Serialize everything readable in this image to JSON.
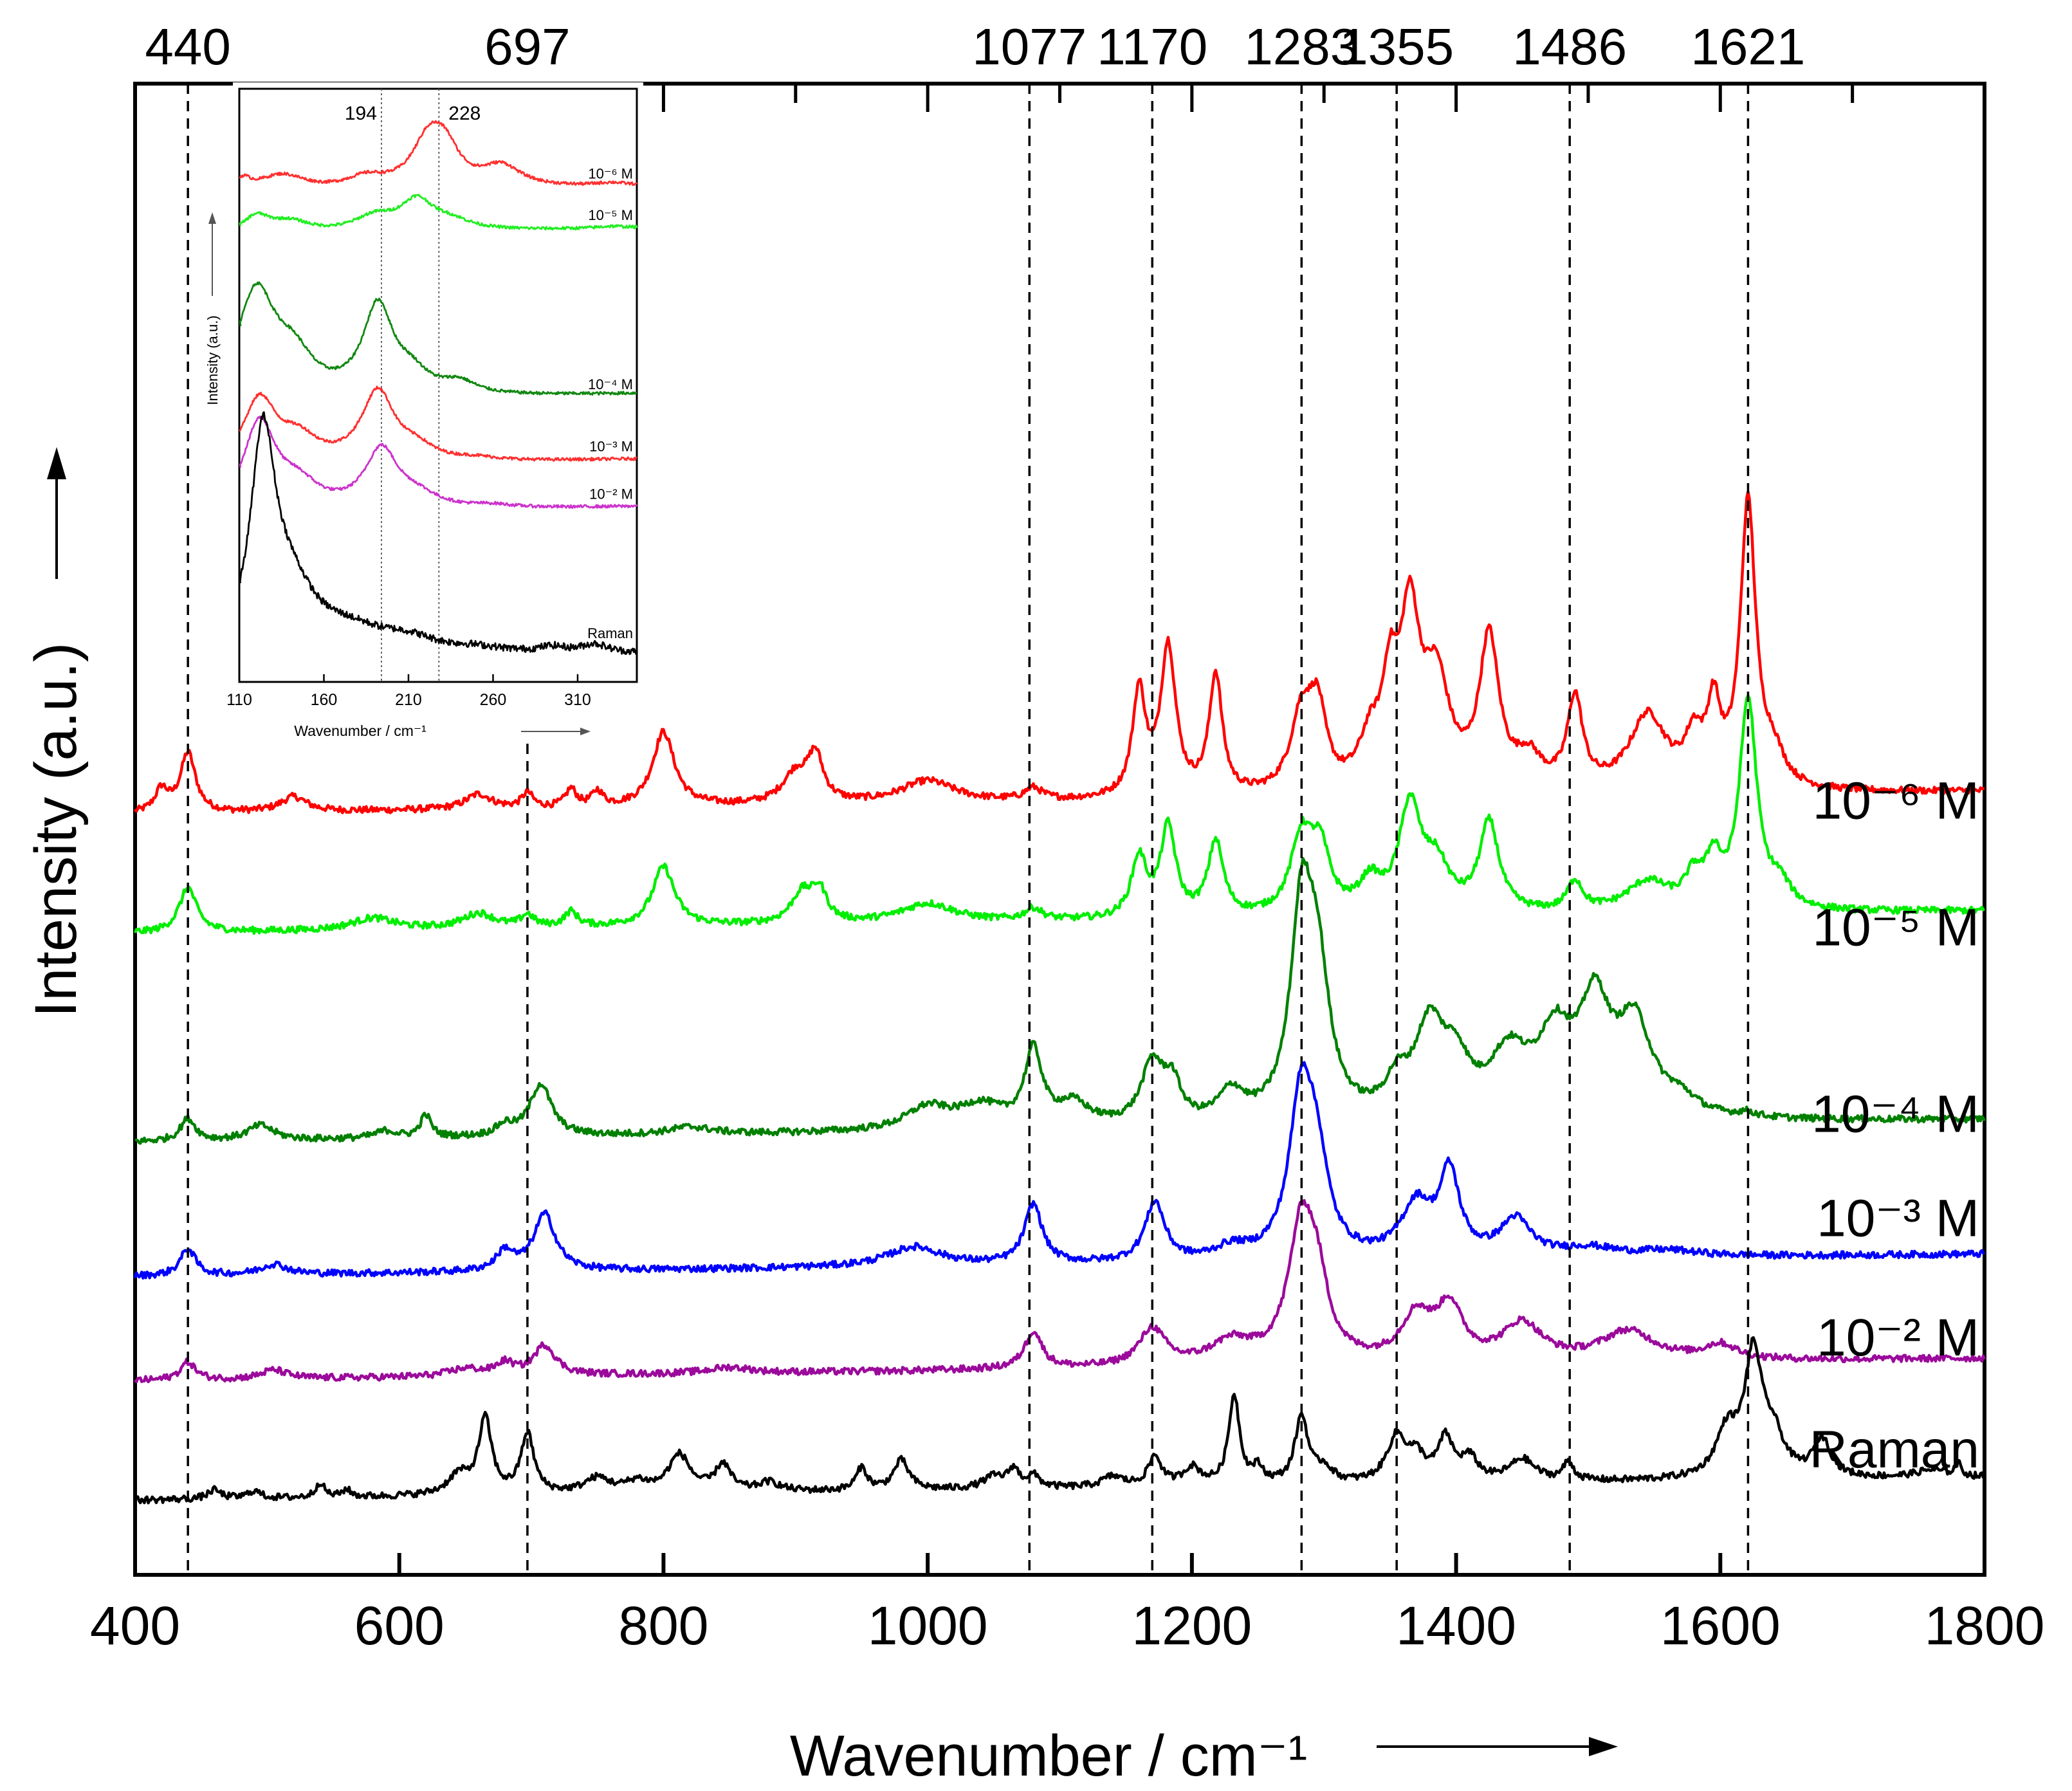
{
  "chart_data": [
    {
      "type": "line",
      "title": "",
      "xlabel": "Wavenumber / cm⁻¹",
      "ylabel": "Intensity (a.u.)",
      "xlim": [
        400,
        1800
      ],
      "ylim": [
        0,
        100
      ],
      "x_ticks": [
        "400",
        "600",
        "800",
        "1000",
        "1200",
        "1400",
        "1600",
        "1800"
      ],
      "x_tick_values": [
        400,
        600,
        800,
        1000,
        1200,
        1400,
        1600,
        1800
      ],
      "top_ticks": [
        400,
        500,
        600,
        700,
        800,
        900,
        1000,
        1100,
        1200,
        1300,
        1400,
        1500,
        1600,
        1700,
        1800
      ],
      "annotations": [
        {
          "position": 440,
          "label": "440"
        },
        {
          "position": 697,
          "label": "697"
        },
        {
          "position": 1077,
          "label": "1077"
        },
        {
          "position": 1170,
          "label": "1170"
        },
        {
          "position": 1283,
          "label": "1283"
        },
        {
          "position": 1355,
          "label": "1355"
        },
        {
          "position": 1486,
          "label": "1486"
        },
        {
          "position": 1621,
          "label": "1621"
        }
      ],
      "series": [
        {
          "name": "10⁻⁶ M",
          "color": "#ff0000",
          "baseline": 51,
          "ypos": 52,
          "peaks": [
            [
              420,
              1.5,
              6
            ],
            [
              440,
              4,
              7
            ],
            [
              520,
              1,
              12
            ],
            [
              660,
              1,
              12
            ],
            [
              697,
              1,
              5
            ],
            [
              730,
              1.2,
              5
            ],
            [
              750,
              1,
              5
            ],
            [
              800,
              5,
              10
            ],
            [
              900,
              2,
              12
            ],
            [
              915,
              3,
              7
            ],
            [
              1000,
              1.5,
              25
            ],
            [
              1080,
              0.8,
              8
            ],
            [
              1160,
              7,
              6
            ],
            [
              1182,
              10,
              7
            ],
            [
              1218,
              8,
              6
            ],
            [
              1283,
              5,
              10
            ],
            [
              1295,
              5,
              8
            ],
            [
              1335,
              3,
              10
            ],
            [
              1350,
              6,
              7
            ],
            [
              1365,
              11,
              9
            ],
            [
              1385,
              7,
              12
            ],
            [
              1425,
              10,
              9
            ],
            [
              1455,
              2,
              12
            ],
            [
              1490,
              6,
              7
            ],
            [
              1545,
              5,
              17
            ],
            [
              1580,
              3,
              8
            ],
            [
              1595,
              5,
              6
            ],
            [
              1621,
              19,
              7
            ],
            [
              1640,
              2,
              10
            ]
          ]
        },
        {
          "name": "10⁻⁵ M",
          "color": "#00ee00",
          "baseline": 43,
          "ypos": 43.5,
          "peaks": [
            [
              440,
              3,
              8
            ],
            [
              580,
              0.8,
              20
            ],
            [
              660,
              1,
              15
            ],
            [
              697,
              0.8,
              6
            ],
            [
              730,
              1,
              6
            ],
            [
              800,
              4,
              10
            ],
            [
              905,
              2,
              10
            ],
            [
              918,
              2,
              7
            ],
            [
              1000,
              1.3,
              25
            ],
            [
              1080,
              0.8,
              8
            ],
            [
              1160,
              4,
              7
            ],
            [
              1182,
              6,
              7
            ],
            [
              1218,
              5,
              7
            ],
            [
              1283,
              5,
              10
            ],
            [
              1297,
              4,
              9
            ],
            [
              1335,
              2,
              10
            ],
            [
              1365,
              7,
              10
            ],
            [
              1385,
              3,
              12
            ],
            [
              1425,
              6,
              9
            ],
            [
              1490,
              2,
              7
            ],
            [
              1545,
              2,
              20
            ],
            [
              1580,
              2,
              8
            ],
            [
              1595,
              3,
              7
            ],
            [
              1621,
              14,
              8
            ],
            [
              1645,
              1.5,
              10
            ]
          ]
        },
        {
          "name": "10⁻⁴ M",
          "color": "#008000",
          "baseline": 29,
          "ypos": 31,
          "peaks": [
            [
              440,
              1.5,
              7
            ],
            [
              495,
              1,
              12
            ],
            [
              590,
              0.5,
              10
            ],
            [
              620,
              1.5,
              5
            ],
            [
              680,
              0.7,
              8
            ],
            [
              707,
              3.5,
              10
            ],
            [
              820,
              0.5,
              20
            ],
            [
              1000,
              1.5,
              20
            ],
            [
              1040,
              1.5,
              20
            ],
            [
              1080,
              5,
              8
            ],
            [
              1110,
              1.5,
              15
            ],
            [
              1170,
              4,
              10
            ],
            [
              1185,
              2.5,
              8
            ],
            [
              1230,
              2,
              12
            ],
            [
              1283,
              13,
              10
            ],
            [
              1295,
              9,
              11
            ],
            [
              1355,
              2,
              10
            ],
            [
              1380,
              6,
              14
            ],
            [
              1400,
              3,
              12
            ],
            [
              1440,
              4,
              18
            ],
            [
              1475,
              5,
              16
            ],
            [
              1505,
              7,
              14
            ],
            [
              1535,
              6,
              16
            ],
            [
              1570,
              1,
              15
            ],
            [
              1620,
              0.3,
              8
            ]
          ]
        },
        {
          "name": "10⁻³ M",
          "color": "#0000ff",
          "baseline": 20,
          "ypos": 24,
          "peaks": [
            [
              440,
              1.8,
              7
            ],
            [
              505,
              0.7,
              12
            ],
            [
              680,
              1.3,
              8
            ],
            [
              710,
              3.8,
              10
            ],
            [
              990,
              1.3,
              25
            ],
            [
              1080,
              4,
              8
            ],
            [
              1172,
              4,
              9
            ],
            [
              1230,
              0.8,
              15
            ],
            [
              1283,
              11,
              11
            ],
            [
              1295,
              5,
              10
            ],
            [
              1370,
              3.5,
              14
            ],
            [
              1395,
              5.5,
              9
            ],
            [
              1445,
              2.5,
              14
            ],
            [
              1500,
              0.6,
              25
            ],
            [
              1560,
              0.4,
              30
            ]
          ]
        },
        {
          "name": "10⁻² M",
          "color": "#9b0a9b",
          "baseline": 13,
          "ypos": 16,
          "peaks": [
            [
              440,
              1.2,
              7
            ],
            [
              505,
              0.6,
              12
            ],
            [
              650,
              0.5,
              15
            ],
            [
              680,
              0.8,
              8
            ],
            [
              710,
              2,
              10
            ],
            [
              850,
              0.4,
              20
            ],
            [
              1080,
              2.5,
              8
            ],
            [
              1170,
              2.5,
              12
            ],
            [
              1230,
              1.5,
              20
            ],
            [
              1283,
              9,
              12
            ],
            [
              1295,
              4,
              10
            ],
            [
              1370,
              3,
              14
            ],
            [
              1395,
              3.5,
              12
            ],
            [
              1450,
              2.5,
              18
            ],
            [
              1530,
              2,
              25
            ],
            [
              1600,
              1,
              15
            ]
          ]
        },
        {
          "name": "Raman",
          "color": "#000000",
          "baseline": 5,
          "ypos": 8.5,
          "peaks": [
            [
              460,
              0.6,
              6
            ],
            [
              490,
              0.5,
              6
            ],
            [
              540,
              1,
              4
            ],
            [
              560,
              0.5,
              4
            ],
            [
              645,
              1.3,
              10
            ],
            [
              665,
              5,
              6
            ],
            [
              697,
              4,
              6
            ],
            [
              750,
              1,
              12
            ],
            [
              780,
              0.7,
              10
            ],
            [
              812,
              2.5,
              10
            ],
            [
              845,
              1.8,
              7
            ],
            [
              880,
              0.6,
              10
            ],
            [
              950,
              1.5,
              5
            ],
            [
              980,
              2,
              7
            ],
            [
              1050,
              0.8,
              10
            ],
            [
              1065,
              1.2,
              5
            ],
            [
              1080,
              0.8,
              6
            ],
            [
              1140,
              0.7,
              10
            ],
            [
              1172,
              2,
              6
            ],
            [
              1200,
              1.2,
              8
            ],
            [
              1232,
              6,
              5
            ],
            [
              1250,
              1,
              5
            ],
            [
              1283,
              4.5,
              6
            ],
            [
              1300,
              1,
              8
            ],
            [
              1355,
              3,
              9
            ],
            [
              1370,
              1.5,
              8
            ],
            [
              1392,
              2.8,
              7
            ],
            [
              1410,
              1.5,
              8
            ],
            [
              1450,
              1.5,
              12
            ],
            [
              1485,
              1.2,
              5
            ],
            [
              1605,
              3,
              10
            ],
            [
              1625,
              8,
              8
            ],
            [
              1640,
              2.5,
              10
            ],
            [
              1677,
              2.5,
              8
            ],
            [
              1760,
              0.5,
              15
            ],
            [
              1780,
              0.8,
              3
            ]
          ]
        }
      ]
    },
    {
      "type": "line",
      "title": "",
      "xlabel": "Wavenumber / cm⁻¹",
      "ylabel": "Intensity (a.u.)",
      "xlim": [
        110,
        345
      ],
      "ylim": [
        0,
        100
      ],
      "x_ticks": [
        "110",
        "160",
        "210",
        "260",
        "310"
      ],
      "x_tick_values": [
        110,
        160,
        210,
        260,
        310
      ],
      "annotations": [
        {
          "position": 194,
          "label": "194"
        },
        {
          "position": 228,
          "label": "228"
        }
      ],
      "series": [
        {
          "name": "10⁻⁶ M",
          "color": "#ff3030",
          "baseline": 82,
          "ypos": 84,
          "peaks": [
            [
              112,
              2,
              6
            ],
            [
              135,
              3,
              18
            ],
            [
              185,
              2,
              15
            ],
            [
              222,
              8,
              12
            ],
            [
              232,
              5,
              10
            ],
            [
              265,
              3.5,
              14
            ],
            [
              330,
              0.5,
              12
            ]
          ]
        },
        {
          "name": "10⁻⁵ M",
          "color": "#22ee22",
          "baseline": 75,
          "ypos": 77,
          "peaks": [
            [
              120,
              3,
              10
            ],
            [
              140,
              2,
              15
            ],
            [
              190,
              2.5,
              15
            ],
            [
              215,
              5,
              12
            ],
            [
              235,
              1.5,
              15
            ],
            [
              330,
              0.3,
              10
            ]
          ]
        },
        {
          "name": "10⁻⁴ M",
          "color": "#118811",
          "baseline": 47,
          "ypos": 48.5,
          "peaks": [
            [
              120,
              18,
              14
            ],
            [
              142,
              6,
              14
            ],
            [
              192,
              15,
              11
            ],
            [
              212,
              3,
              12
            ],
            [
              240,
              2,
              12
            ]
          ]
        },
        {
          "name": "10⁻³ M",
          "color": "#ff3030",
          "baseline": 36,
          "ypos": 38,
          "peaks": [
            [
              122,
              11,
              12
            ],
            [
              145,
              4,
              14
            ],
            [
              192,
              12,
              12
            ],
            [
              215,
              2,
              12
            ],
            [
              250,
              0.5,
              15
            ]
          ]
        },
        {
          "name": "10⁻² M",
          "color": "#cc33cc",
          "baseline": 28,
          "ypos": 30,
          "peaks": [
            [
              122,
              15,
              12
            ],
            [
              145,
              4,
              15
            ],
            [
              194,
              10,
              12
            ],
            [
              215,
              2,
              15
            ],
            [
              260,
              0.5,
              15
            ]
          ]
        },
        {
          "name": "Raman",
          "color": "#000000",
          "baseline": 3,
          "ypos": 6.5,
          "peaks": [
            [
              124,
              35,
              9
            ],
            [
              140,
              10,
              18
            ],
            [
              175,
              4,
              30
            ],
            [
              210,
              2,
              20
            ],
            [
              250,
              1,
              25
            ],
            [
              295,
              1,
              10
            ],
            [
              320,
              1.5,
              10
            ]
          ]
        }
      ]
    }
  ]
}
